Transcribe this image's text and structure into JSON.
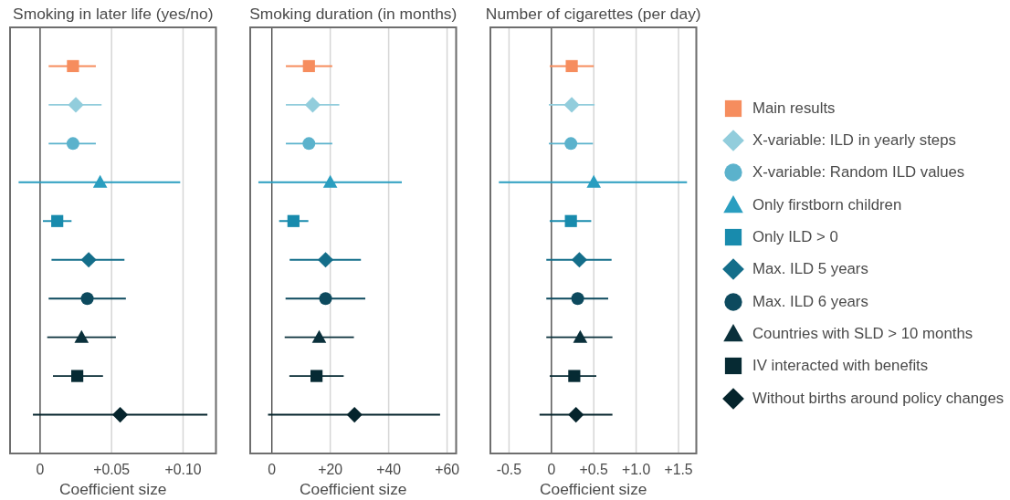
{
  "chart_data": [
    {
      "type": "scatter",
      "orientation": "horizontal",
      "title": "Smoking in later life (yes/no)",
      "xlabel": "Coefficient size",
      "categories": [
        null,
        null,
        null,
        null,
        null,
        null,
        null,
        null,
        null,
        null
      ],
      "series": [
        {
          "color": "#f68d5e",
          "marker": "square",
          "values": [
            0.023,
            null,
            null,
            null,
            null,
            null,
            null,
            null,
            null,
            null
          ],
          "errors": [
            [
              0.006,
              0.039
            ],
            null,
            null,
            null,
            null,
            null,
            null,
            null,
            null,
            null
          ]
        },
        {
          "color": "#92cddc",
          "marker": "diamond",
          "values": [
            null,
            0.025,
            null,
            null,
            null,
            null,
            null,
            null,
            null,
            null
          ],
          "errors": [
            null,
            [
              0.006,
              0.043
            ],
            null,
            null,
            null,
            null,
            null,
            null,
            null,
            null
          ]
        },
        {
          "color": "#5bb2cc",
          "marker": "circle",
          "values": [
            null,
            null,
            0.023,
            null,
            null,
            null,
            null,
            null,
            null,
            null
          ],
          "errors": [
            null,
            null,
            [
              0.006,
              0.039
            ],
            null,
            null,
            null,
            null,
            null,
            null,
            null
          ]
        },
        {
          "color": "#2a9ec0",
          "marker": "triangle",
          "values": [
            null,
            null,
            null,
            0.042,
            null,
            null,
            null,
            null,
            null,
            null
          ],
          "errors": [
            null,
            null,
            null,
            [
              -0.015,
              0.098
            ],
            null,
            null,
            null,
            null,
            null,
            null
          ]
        },
        {
          "color": "#188bad",
          "marker": "square",
          "values": [
            null,
            null,
            null,
            null,
            0.012,
            null,
            null,
            null,
            null,
            null
          ],
          "errors": [
            null,
            null,
            null,
            null,
            [
              0.002,
              0.022
            ],
            null,
            null,
            null,
            null,
            null
          ]
        },
        {
          "color": "#146e8a",
          "marker": "diamond",
          "values": [
            null,
            null,
            null,
            null,
            null,
            0.034,
            null,
            null,
            null,
            null
          ],
          "errors": [
            null,
            null,
            null,
            null,
            null,
            [
              0.008,
              0.059
            ],
            null,
            null,
            null,
            null
          ]
        },
        {
          "color": "#0d4a5e",
          "marker": "circle",
          "values": [
            null,
            null,
            null,
            null,
            null,
            null,
            0.033,
            null,
            null,
            null
          ],
          "errors": [
            null,
            null,
            null,
            null,
            null,
            null,
            [
              0.006,
              0.06
            ],
            null,
            null,
            null
          ]
        },
        {
          "color": "#0a303b",
          "marker": "triangle",
          "values": [
            null,
            null,
            null,
            null,
            null,
            null,
            null,
            0.029,
            null,
            null
          ],
          "errors": [
            null,
            null,
            null,
            null,
            null,
            null,
            null,
            [
              0.005,
              0.053
            ],
            null,
            null
          ]
        },
        {
          "color": "#062a33",
          "marker": "square",
          "values": [
            null,
            null,
            null,
            null,
            null,
            null,
            null,
            null,
            0.026,
            null
          ],
          "errors": [
            null,
            null,
            null,
            null,
            null,
            null,
            null,
            null,
            [
              0.009,
              0.044
            ],
            null
          ]
        },
        {
          "color": "#05242c",
          "marker": "diamond",
          "values": [
            null,
            null,
            null,
            null,
            null,
            null,
            null,
            null,
            null,
            0.056
          ],
          "errors": [
            null,
            null,
            null,
            null,
            null,
            null,
            null,
            null,
            null,
            [
              -0.005,
              0.117
            ]
          ]
        }
      ],
      "xlim": [
        -0.021,
        0.123
      ],
      "xticks": [
        {
          "value": 0,
          "label": "0"
        },
        {
          "value": 0.05,
          "label": "+0.05"
        },
        {
          "value": 0.1,
          "label": "+0.10"
        }
      ],
      "grid": "x",
      "ref_lines": [
        {
          "axis": "x",
          "value": 0
        }
      ],
      "tick_labels": "x"
    },
    {
      "type": "scatter",
      "orientation": "horizontal",
      "title": "Smoking duration (in months)",
      "xlabel": "Coefficient size",
      "categories": [
        null,
        null,
        null,
        null,
        null,
        null,
        null,
        null,
        null,
        null
      ],
      "series": [
        {
          "color": "#f68d5e",
          "marker": "square",
          "values": [
            12.7,
            null,
            null,
            null,
            null,
            null,
            null,
            null,
            null,
            null
          ],
          "errors": [
            [
              4.8,
              20.7
            ],
            null,
            null,
            null,
            null,
            null,
            null,
            null,
            null,
            null
          ]
        },
        {
          "color": "#92cddc",
          "marker": "diamond",
          "values": [
            null,
            14.0,
            null,
            null,
            null,
            null,
            null,
            null,
            null,
            null
          ],
          "errors": [
            null,
            [
              4.8,
              23.1
            ],
            null,
            null,
            null,
            null,
            null,
            null,
            null,
            null
          ]
        },
        {
          "color": "#5bb2cc",
          "marker": "circle",
          "values": [
            null,
            null,
            12.7,
            null,
            null,
            null,
            null,
            null,
            null,
            null
          ],
          "errors": [
            null,
            null,
            [
              4.8,
              20.7
            ],
            null,
            null,
            null,
            null,
            null,
            null,
            null
          ]
        },
        {
          "color": "#2a9ec0",
          "marker": "triangle",
          "values": [
            null,
            null,
            null,
            20.0,
            null,
            null,
            null,
            null,
            null,
            null
          ],
          "errors": [
            null,
            null,
            null,
            [
              -4.6,
              44.5
            ],
            null,
            null,
            null,
            null,
            null,
            null
          ]
        },
        {
          "color": "#188bad",
          "marker": "square",
          "values": [
            null,
            null,
            null,
            null,
            7.4,
            null,
            null,
            null,
            null,
            null
          ],
          "errors": [
            null,
            null,
            null,
            null,
            [
              2.5,
              12.5
            ],
            null,
            null,
            null,
            null,
            null
          ]
        },
        {
          "color": "#146e8a",
          "marker": "diamond",
          "values": [
            null,
            null,
            null,
            null,
            null,
            18.4,
            null,
            null,
            null,
            null
          ],
          "errors": [
            null,
            null,
            null,
            null,
            null,
            [
              6.1,
              30.5
            ],
            null,
            null,
            null,
            null
          ]
        },
        {
          "color": "#0d4a5e",
          "marker": "circle",
          "values": [
            null,
            null,
            null,
            null,
            null,
            null,
            18.4,
            null,
            null,
            null
          ],
          "errors": [
            null,
            null,
            null,
            null,
            null,
            null,
            [
              4.7,
              32.0
            ],
            null,
            null,
            null
          ]
        },
        {
          "color": "#0a303b",
          "marker": "triangle",
          "values": [
            null,
            null,
            null,
            null,
            null,
            null,
            null,
            16.2,
            null,
            null
          ],
          "errors": [
            null,
            null,
            null,
            null,
            null,
            null,
            null,
            [
              4.4,
              28.1
            ],
            null,
            null
          ]
        },
        {
          "color": "#062a33",
          "marker": "square",
          "values": [
            null,
            null,
            null,
            null,
            null,
            null,
            null,
            null,
            15.3,
            null
          ],
          "errors": [
            null,
            null,
            null,
            null,
            null,
            null,
            null,
            null,
            [
              6.0,
              24.6
            ],
            null
          ]
        },
        {
          "color": "#05242c",
          "marker": "diamond",
          "values": [
            null,
            null,
            null,
            null,
            null,
            null,
            null,
            null,
            null,
            28.3
          ],
          "errors": [
            null,
            null,
            null,
            null,
            null,
            null,
            null,
            null,
            null,
            [
              -1.3,
              57.6
            ]
          ]
        }
      ],
      "xlim": [
        -7.4,
        63.1
      ],
      "xticks": [
        {
          "value": 0,
          "label": "0"
        },
        {
          "value": 20,
          "label": "+20"
        },
        {
          "value": 40,
          "label": "+40"
        },
        {
          "value": 60,
          "label": "+60"
        }
      ],
      "grid": "x",
      "ref_lines": [
        {
          "axis": "x",
          "value": 0
        }
      ],
      "tick_labels": "x"
    },
    {
      "type": "scatter",
      "orientation": "horizontal",
      "title": "Number of cigarettes (per day)",
      "xlabel": "Coefficient size",
      "categories": [
        null,
        null,
        null,
        null,
        null,
        null,
        null,
        null,
        null,
        null
      ],
      "series": [
        {
          "name": "Main results",
          "color": "#f68d5e",
          "marker": "square",
          "values": [
            0.24,
            null,
            null,
            null,
            null,
            null,
            null,
            null,
            null,
            null
          ],
          "errors": [
            [
              -0.02,
              0.5
            ],
            null,
            null,
            null,
            null,
            null,
            null,
            null,
            null,
            null
          ]
        },
        {
          "name": "X-variable: ILD in yearly steps",
          "color": "#92cddc",
          "marker": "diamond",
          "values": [
            null,
            0.24,
            null,
            null,
            null,
            null,
            null,
            null,
            null,
            null
          ],
          "errors": [
            null,
            [
              -0.03,
              0.51
            ],
            null,
            null,
            null,
            null,
            null,
            null,
            null,
            null
          ]
        },
        {
          "name": "X-variable: Random ILD values",
          "color": "#5bb2cc",
          "marker": "circle",
          "values": [
            null,
            null,
            0.23,
            null,
            null,
            null,
            null,
            null,
            null,
            null
          ],
          "errors": [
            null,
            null,
            [
              -0.03,
              0.49
            ],
            null,
            null,
            null,
            null,
            null,
            null,
            null
          ]
        },
        {
          "name": "Only firstborn children",
          "color": "#2a9ec0",
          "marker": "triangle",
          "values": [
            null,
            null,
            null,
            0.5,
            null,
            null,
            null,
            null,
            null,
            null
          ],
          "errors": [
            null,
            null,
            null,
            [
              -0.62,
              1.6
            ],
            null,
            null,
            null,
            null,
            null,
            null
          ]
        },
        {
          "name": "Only ILD > 0",
          "color": "#188bad",
          "marker": "square",
          "values": [
            null,
            null,
            null,
            null,
            0.23,
            null,
            null,
            null,
            null,
            null
          ],
          "errors": [
            null,
            null,
            null,
            null,
            [
              -0.02,
              0.47
            ],
            null,
            null,
            null,
            null,
            null
          ]
        },
        {
          "name": "Max. ILD 5 years",
          "color": "#146e8a",
          "marker": "diamond",
          "values": [
            null,
            null,
            null,
            null,
            null,
            0.33,
            null,
            null,
            null,
            null
          ],
          "errors": [
            null,
            null,
            null,
            null,
            null,
            [
              -0.06,
              0.71
            ],
            null,
            null,
            null,
            null
          ]
        },
        {
          "name": "Max. ILD 6 years",
          "color": "#0d4a5e",
          "marker": "circle",
          "values": [
            null,
            null,
            null,
            null,
            null,
            null,
            0.31,
            null,
            null,
            null
          ],
          "errors": [
            null,
            null,
            null,
            null,
            null,
            null,
            [
              -0.06,
              0.67
            ],
            null,
            null,
            null
          ]
        },
        {
          "name": "Countries with SLD > 10 months",
          "color": "#0a303b",
          "marker": "triangle",
          "values": [
            null,
            null,
            null,
            null,
            null,
            null,
            null,
            0.34,
            null,
            null
          ],
          "errors": [
            null,
            null,
            null,
            null,
            null,
            null,
            null,
            [
              -0.06,
              0.72
            ],
            null,
            null
          ]
        },
        {
          "name": "IV interacted with benefits",
          "color": "#062a33",
          "marker": "square",
          "values": [
            null,
            null,
            null,
            null,
            null,
            null,
            null,
            null,
            0.27,
            null
          ],
          "errors": [
            null,
            null,
            null,
            null,
            null,
            null,
            null,
            null,
            [
              -0.02,
              0.53
            ],
            null
          ]
        },
        {
          "name": "Without births around policy changes",
          "color": "#05242c",
          "marker": "diamond",
          "values": [
            null,
            null,
            null,
            null,
            null,
            null,
            null,
            null,
            null,
            0.29
          ],
          "errors": [
            null,
            null,
            null,
            null,
            null,
            null,
            null,
            null,
            null,
            [
              -0.14,
              0.72
            ]
          ]
        }
      ],
      "xlim": [
        -0.72,
        1.71
      ],
      "xticks": [
        {
          "value": -0.5,
          "label": "-0.5"
        },
        {
          "value": 0,
          "label": "0"
        },
        {
          "value": 0.5,
          "label": "+0.5"
        },
        {
          "value": 1,
          "label": "+1.0"
        },
        {
          "value": 1.5,
          "label": "+1.5"
        }
      ],
      "grid": "x",
      "ref_lines": [
        {
          "axis": "x",
          "value": 0
        }
      ],
      "tick_labels": "x",
      "legend": "right"
    }
  ]
}
